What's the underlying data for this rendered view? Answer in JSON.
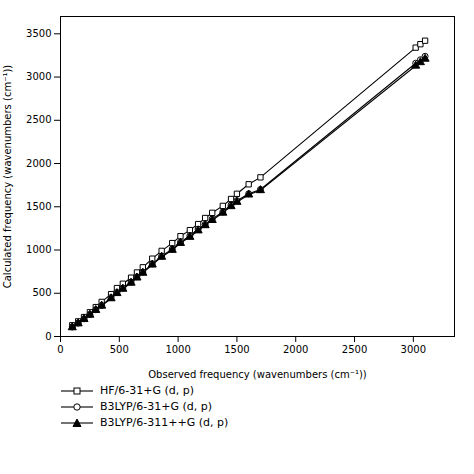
{
  "chart_data": {
    "type": "line",
    "x": [
      100,
      150,
      200,
      250,
      300,
      350,
      430,
      480,
      530,
      600,
      650,
      700,
      780,
      860,
      950,
      1020,
      1100,
      1170,
      1230,
      1290,
      1380,
      1450,
      1500,
      1600,
      1700,
      3020,
      3060,
      3100
    ],
    "series": [
      {
        "name": "HF/6-31+G (d, p)",
        "color": "#000000",
        "marker": "square-open",
        "values": [
          130,
          175,
          225,
          280,
          340,
          400,
          490,
          560,
          610,
          680,
          740,
          800,
          900,
          990,
          1080,
          1160,
          1230,
          1300,
          1370,
          1430,
          1510,
          1590,
          1650,
          1760,
          1840,
          3340,
          3380,
          3420
        ]
      },
      {
        "name": "B3LYP/6-31+G (d, p)",
        "color": "#000000",
        "marker": "circle-open",
        "values": [
          110,
          155,
          205,
          255,
          310,
          360,
          450,
          510,
          560,
          630,
          690,
          745,
          840,
          930,
          1010,
          1090,
          1165,
          1240,
          1295,
          1360,
          1440,
          1520,
          1570,
          1650,
          1700,
          3160,
          3200,
          3240
        ]
      },
      {
        "name": "B3LYP/6-311++G (d, p)",
        "color": "#000000",
        "marker": "triangle-filled",
        "values": [
          105,
          150,
          200,
          250,
          305,
          355,
          440,
          500,
          550,
          620,
          680,
          735,
          830,
          920,
          1000,
          1080,
          1150,
          1225,
          1285,
          1345,
          1430,
          1505,
          1555,
          1640,
          1690,
          3130,
          3170,
          3210
        ]
      }
    ],
    "xlabel": "Observed frequency (wavenumbers (cm⁻¹))",
    "ylabel": "Calculated frequency (wavenumbers (cm⁻¹))",
    "xlim": [
      0,
      3350
    ],
    "ylim": [
      0,
      3700
    ],
    "xticks": [
      0,
      500,
      1000,
      1500,
      2000,
      2500,
      3000
    ],
    "yticks": [
      0,
      500,
      1000,
      1500,
      2000,
      2500,
      3000,
      3500
    ],
    "grid": false,
    "legend": "bottom"
  }
}
